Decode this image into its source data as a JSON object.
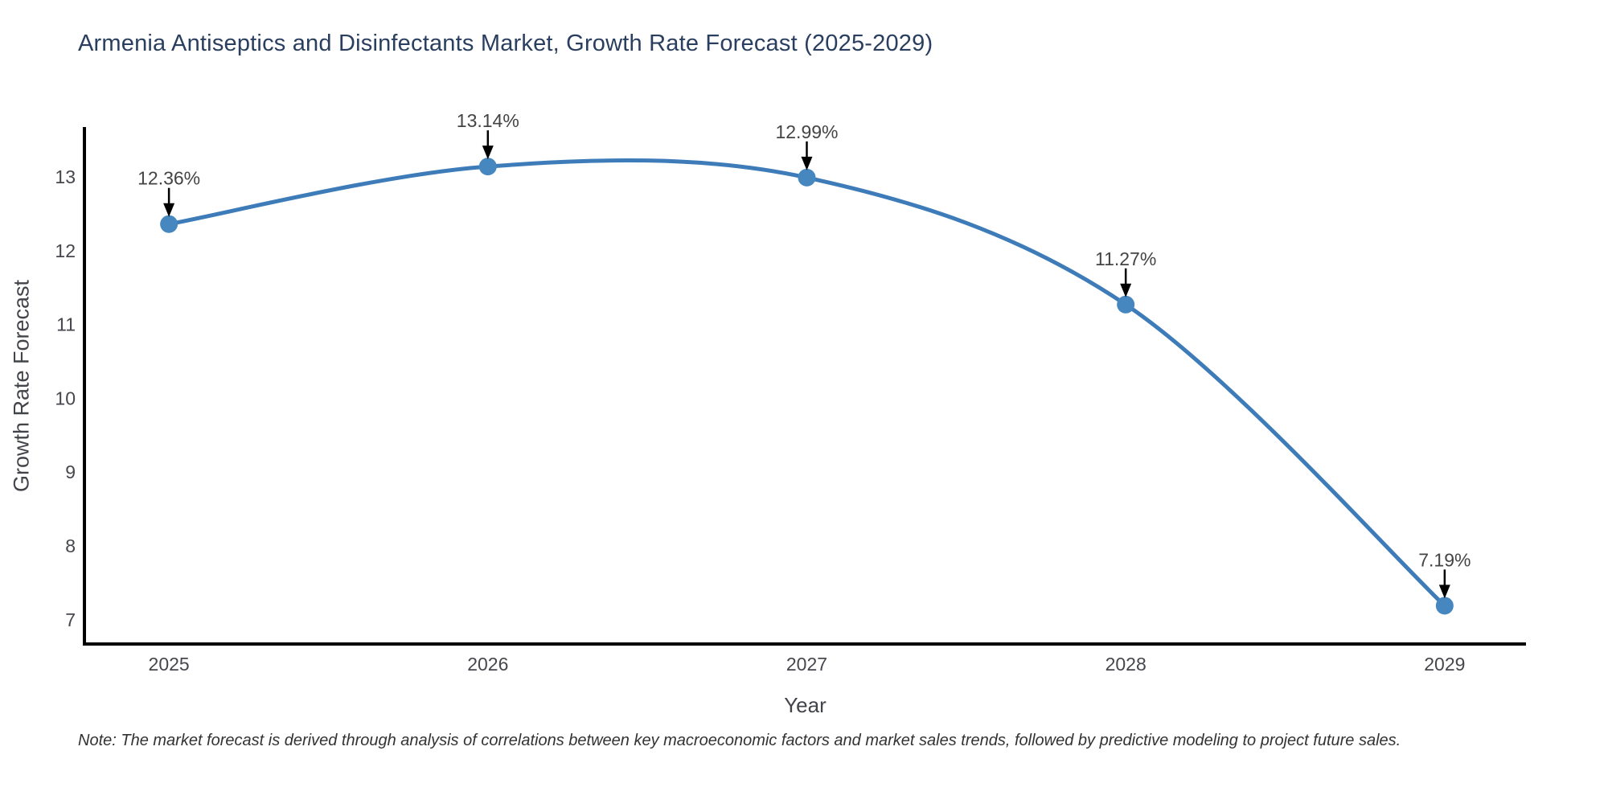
{
  "page": {
    "note": "Note: The market forecast is derived through analysis of correlations between key macroeconomic factors and market sales trends, followed by predictive modeling to project future sales."
  },
  "chart_data": {
    "type": "line",
    "line_shape": "spline",
    "title": "Armenia Antiseptics and Disinfectants Market, Growth Rate Forecast (2025-2029)",
    "xlabel": "Year",
    "ylabel": "Growth Rate Forecast",
    "x": [
      2025,
      2026,
      2027,
      2028,
      2029
    ],
    "y": [
      12.36,
      13.14,
      12.99,
      11.27,
      7.19
    ],
    "point_labels": [
      "12.36%",
      "13.14%",
      "12.99%",
      "11.27%",
      "7.19%"
    ],
    "xticks": [
      "2025",
      "2026",
      "2027",
      "2028",
      "2029"
    ],
    "yticks": [
      7,
      8,
      9,
      10,
      11,
      12,
      13
    ],
    "xlim": [
      2024.735,
      2029.255
    ],
    "ylim": [
      6.671,
      13.675
    ],
    "grid": false,
    "legend": "none",
    "annotation_style": "arrow-down-to-point",
    "colors": {
      "line": "#3d7cb8",
      "marker": "#4687bf",
      "arrow": "#000000",
      "axis": "#000000",
      "title": "#2a3f5f",
      "tick": "#45474d",
      "annotation": "#444444",
      "note": "#333333",
      "background": "#ffffff"
    }
  }
}
